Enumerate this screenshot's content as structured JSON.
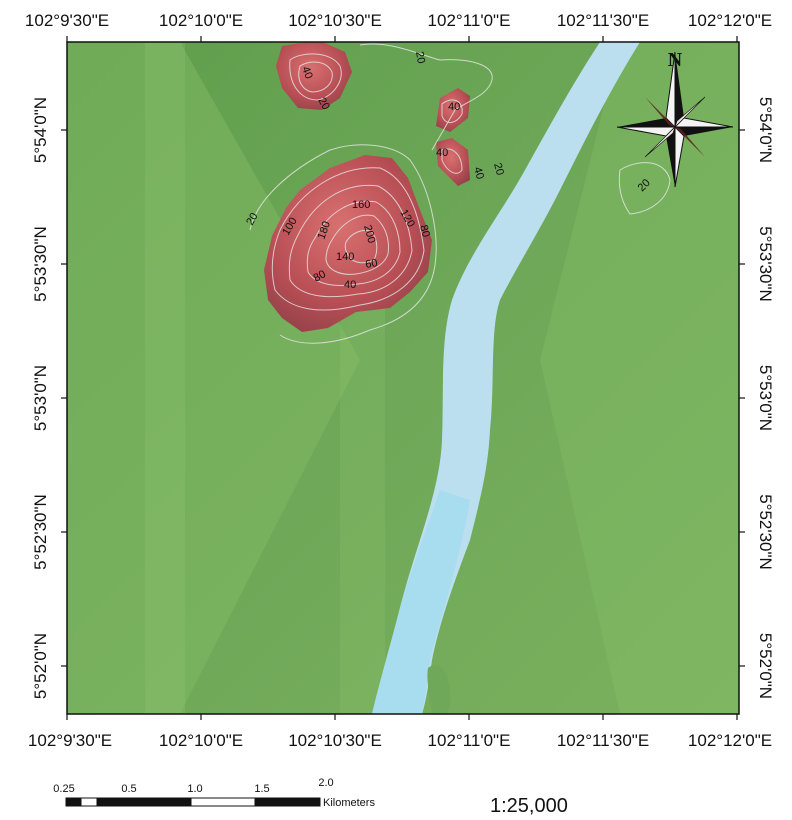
{
  "map": {
    "longitude_labels": [
      "102°9'30\"E",
      "102°10'0\"E",
      "102°10'30\"E",
      "102°11'0\"E",
      "102°11'30\"E",
      "102°12'0\"E"
    ],
    "latitude_labels": [
      "5°54'0\"N",
      "5°53'30\"N",
      "5°53'0\"N",
      "5°52'30\"N",
      "5°52'0\"N"
    ],
    "contour_labels": [
      "20",
      "40",
      "20",
      "40",
      "40",
      "40",
      "20",
      "160",
      "100",
      "180",
      "200",
      "120",
      "80",
      "20",
      "140",
      "60",
      "80",
      "40",
      "20"
    ],
    "north_arrow": {
      "label": "N",
      "icon": "compass-rose-icon"
    },
    "scale_bar": {
      "tick_labels": [
        "0.25",
        "0.5",
        "1.0",
        "1.5",
        "2.0"
      ],
      "unit": "Kilometers"
    },
    "scale_ratio": "1:25,000",
    "colors": {
      "lowland": "#6ea858",
      "lowland_light": "#8fc470",
      "highland": "#c95a5a",
      "river": "#bcdff0",
      "river_south": "#a8dcef",
      "contour": "#e8e8e8"
    }
  }
}
